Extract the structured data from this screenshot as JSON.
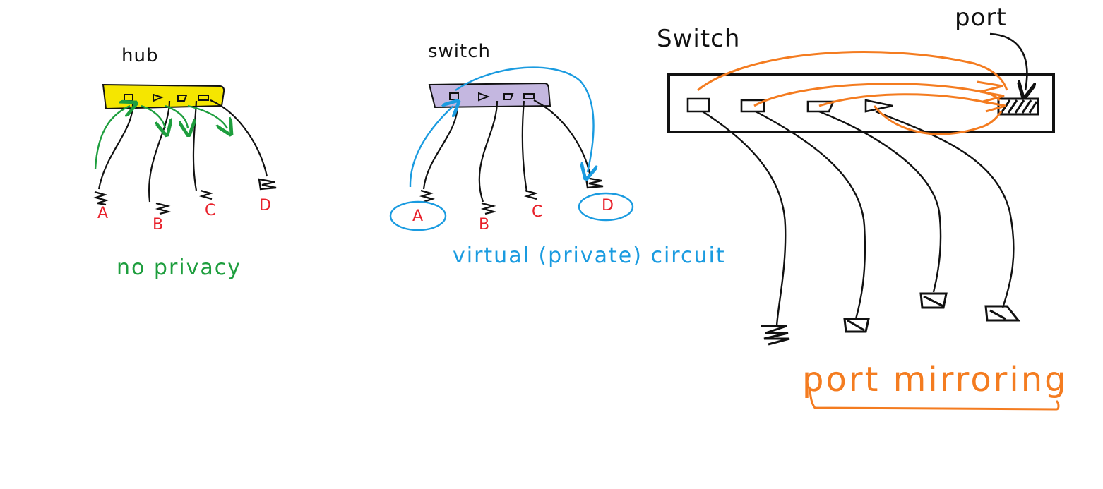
{
  "colors": {
    "ink": "#111111",
    "hub_fill": "#f5e600",
    "switch_fill": "#c4b7e0",
    "red": "#e8202a",
    "green": "#1e9e3e",
    "blue": "#1a9be0",
    "orange": "#f47c20"
  },
  "hub": {
    "label": "hub",
    "nodes": [
      "A",
      "B",
      "C",
      "D"
    ],
    "caption": "no privacy"
  },
  "switch": {
    "label": "switch",
    "nodes": [
      "A",
      "B",
      "C",
      "D"
    ],
    "caption": "virtual (private) circuit"
  },
  "mirror": {
    "label": "Switch",
    "port_label": "port",
    "caption": "port mirroring"
  }
}
